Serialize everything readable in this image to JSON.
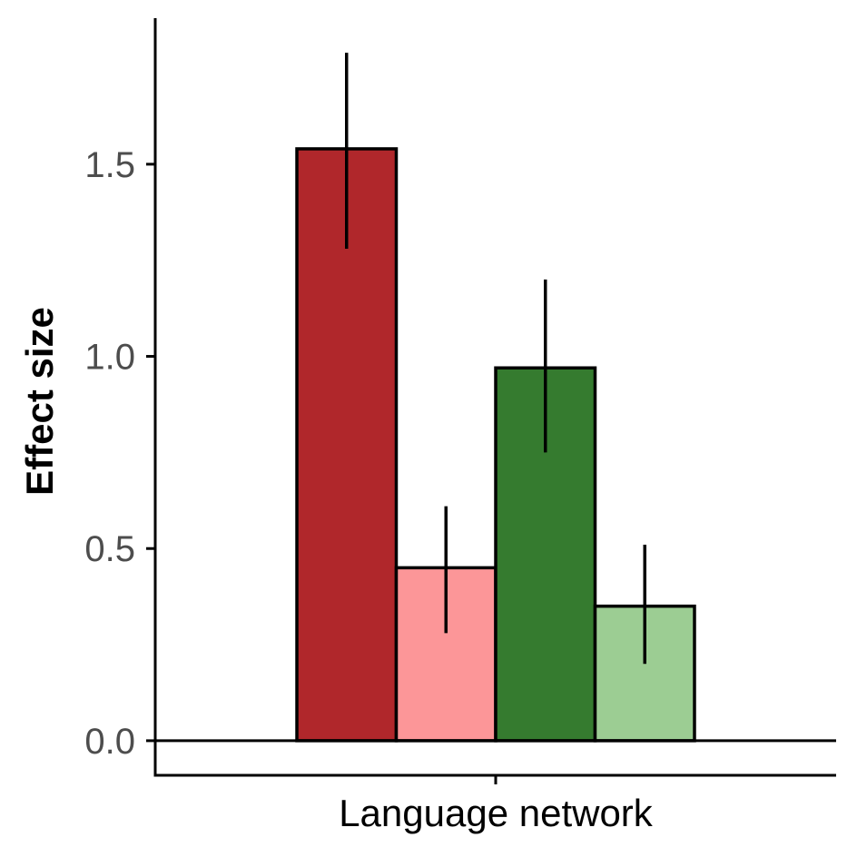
{
  "chart_data": {
    "type": "bar",
    "title": "",
    "xlabel": "",
    "ylabel": "Effect size",
    "categories": [
      "Language network"
    ],
    "ylim": [
      -0.09,
      1.88
    ],
    "yticks": [
      0.0,
      0.5,
      1.0,
      1.5
    ],
    "ytick_labels": [
      "0.0",
      "0.5",
      "1.0",
      "1.5"
    ],
    "grid": false,
    "legend": "none",
    "zero_line": true,
    "series": [
      {
        "values": [
          1.54
        ],
        "error_low": [
          1.28
        ],
        "error_high": [
          1.79
        ],
        "color": "#b0272b"
      },
      {
        "values": [
          0.45
        ],
        "error_low": [
          0.28
        ],
        "error_high": [
          0.61
        ],
        "color": "#fc9698"
      },
      {
        "values": [
          0.97
        ],
        "error_low": [
          0.75
        ],
        "error_high": [
          1.2
        ],
        "color": "#357b2f"
      },
      {
        "values": [
          0.35
        ],
        "error_low": [
          0.2
        ],
        "error_high": [
          0.51
        ],
        "color": "#9ccd93"
      }
    ]
  }
}
